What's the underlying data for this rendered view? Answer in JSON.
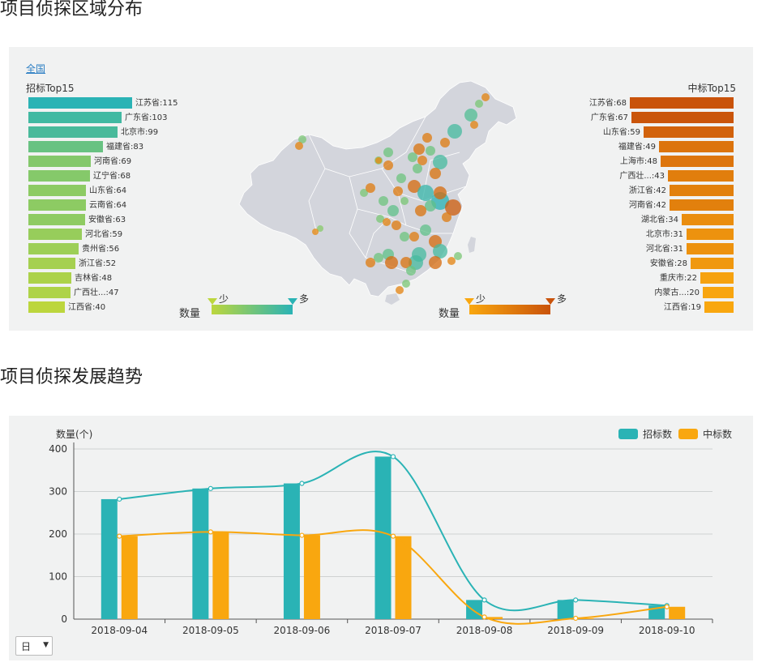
{
  "section1_title": "项目侦探区域分布",
  "section2_title": "项目侦探发展趋势",
  "map": {
    "scope_link": "全国",
    "left_title": "招标Top15",
    "right_title": "中标Top15",
    "left_items": [
      {
        "label": "江苏省:115",
        "value": 115
      },
      {
        "label": "广东省:103",
        "value": 103
      },
      {
        "label": "北京市:99",
        "value": 99
      },
      {
        "label": "福建省:83",
        "value": 83
      },
      {
        "label": "河南省:69",
        "value": 69
      },
      {
        "label": "辽宁省:68",
        "value": 68
      },
      {
        "label": "山东省:64",
        "value": 64
      },
      {
        "label": "云南省:64",
        "value": 64
      },
      {
        "label": "安徽省:63",
        "value": 63
      },
      {
        "label": "河北省:59",
        "value": 59
      },
      {
        "label": "贵州省:56",
        "value": 56
      },
      {
        "label": "浙江省:52",
        "value": 52
      },
      {
        "label": "吉林省:48",
        "value": 48
      },
      {
        "label": "广西壮...:47",
        "value": 47
      },
      {
        "label": "江西省:40",
        "value": 40
      }
    ],
    "right_items": [
      {
        "label": "江苏省:68",
        "value": 68
      },
      {
        "label": "广东省:67",
        "value": 67
      },
      {
        "label": "山东省:59",
        "value": 59
      },
      {
        "label": "福建省:49",
        "value": 49
      },
      {
        "label": "上海市:48",
        "value": 48
      },
      {
        "label": "广西壮...:43",
        "value": 43
      },
      {
        "label": "浙江省:42",
        "value": 42
      },
      {
        "label": "河南省:42",
        "value": 42
      },
      {
        "label": "湖北省:34",
        "value": 34
      },
      {
        "label": "北京市:31",
        "value": 31
      },
      {
        "label": "河北省:31",
        "value": 31
      },
      {
        "label": "安徽省:28",
        "value": 28
      },
      {
        "label": "重庆市:22",
        "value": 22
      },
      {
        "label": "内蒙古...:20",
        "value": 20
      },
      {
        "label": "江西省:19",
        "value": 19
      }
    ],
    "legend_left": {
      "title": "数量",
      "low": "少",
      "high": "多"
    },
    "legend_right": {
      "title": "数量",
      "low": "少",
      "high": "多"
    },
    "colors": {
      "left_high": "#2ab3b5",
      "left_low": "#bcd63d",
      "right_high": "#c9530b",
      "right_low": "#f9a70f",
      "map_fill": "#d3d5dc",
      "panel_bg": "#f1f2f2"
    }
  },
  "chart_data": {
    "type": "bar",
    "categories": [
      "2018-09-04",
      "2018-09-05",
      "2018-09-06",
      "2018-09-07",
      "2018-09-08",
      "2018-09-09",
      "2018-09-10"
    ],
    "series": [
      {
        "name": "招标数",
        "color": "#2ab3b5",
        "values": [
          282,
          307,
          319,
          382,
          45,
          45,
          32
        ]
      },
      {
        "name": "中标数",
        "color": "#f9a70f",
        "values": [
          195,
          205,
          197,
          195,
          5,
          2,
          29
        ]
      }
    ],
    "ylabel": "数量(个)",
    "ylim": [
      0,
      400
    ],
    "yticks": [
      0,
      100,
      200,
      300,
      400
    ],
    "lines_overlay": true,
    "grid": true,
    "legend_position": "top-right"
  },
  "granularity_select": {
    "value": "日"
  }
}
